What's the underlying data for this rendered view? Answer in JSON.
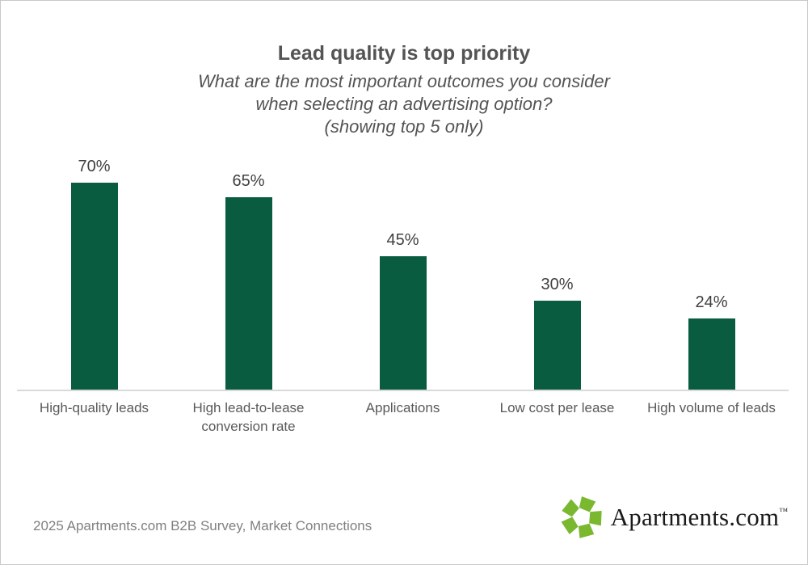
{
  "header": {
    "title": "Lead quality is top priority",
    "subtitle_lines": [
      "What are the most important outcomes you consider",
      "when selecting an advertising option?",
      "(showing top 5 only)"
    ]
  },
  "chart_data": {
    "type": "bar",
    "title": "Lead quality is top priority",
    "subtitle": "What are the most important outcomes you consider when selecting an advertising option? (showing top 5 only)",
    "categories": [
      "High-quality leads",
      "High lead-to-lease conversion rate",
      "Applications",
      "Low cost per lease",
      "High volume of leads"
    ],
    "values": [
      70,
      65,
      45,
      30,
      24
    ],
    "value_labels": [
      "70%",
      "65%",
      "45%",
      "30%",
      "24%"
    ],
    "xlabel": "",
    "ylabel": "",
    "ylim": [
      0,
      80
    ],
    "grid": false,
    "legend": false,
    "bar_color": "#0a5c40",
    "axis_line_color": "#d9d9d9"
  },
  "footer": {
    "source": "2025 Apartments.com B2B Survey, Market Connections",
    "logo": {
      "text": "Apartments.com",
      "tm": "™",
      "icon": "apartments-pinwheel-icon",
      "icon_color": "#7ab830",
      "text_color": "#1a1a1a"
    }
  },
  "colors": {
    "background": "#ffffff",
    "border": "#c9c9c9",
    "title_text": "#545454",
    "value_label_text": "#404040",
    "category_label_text": "#595959",
    "source_text": "#808080"
  }
}
